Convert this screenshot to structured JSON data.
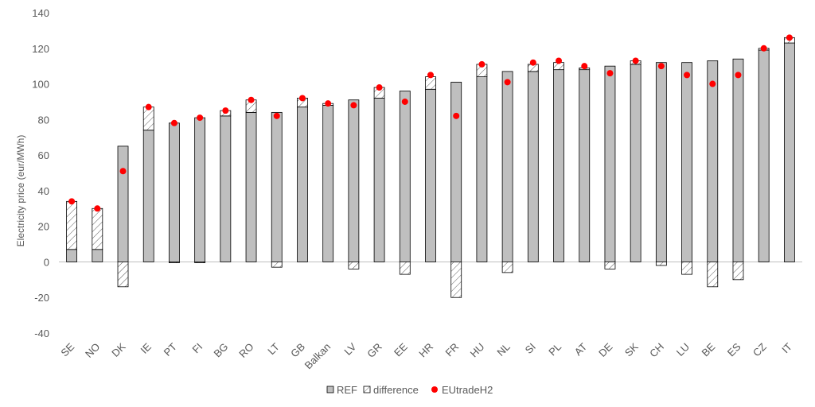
{
  "chart_data": {
    "type": "bar",
    "categories": [
      "SE",
      "NO",
      "DK",
      "IE",
      "PT",
      "FI",
      "BG",
      "RO",
      "LT",
      "GB",
      "Balkan",
      "LV",
      "GR",
      "EE",
      "HR",
      "FR",
      "HU",
      "NL",
      "SI",
      "PL",
      "AT",
      "DE",
      "SK",
      "CH",
      "LU",
      "BE",
      "ES",
      "CZ",
      "IT"
    ],
    "series": [
      {
        "name": "REF",
        "values": [
          7,
          7,
          65,
          74,
          78,
          81,
          82,
          84,
          84,
          87,
          88,
          91,
          92,
          96,
          97,
          101,
          104,
          107,
          107,
          108,
          108,
          110,
          111,
          112,
          112,
          113,
          114,
          119,
          123
        ]
      },
      {
        "name": "difference",
        "values": [
          27,
          23,
          -14,
          13,
          -0.5,
          -0.5,
          3,
          7,
          -3,
          5,
          1,
          -4,
          6,
          -7,
          7,
          -20,
          7,
          -6,
          4,
          4,
          1,
          -4,
          2,
          -2,
          -7,
          -14,
          -10,
          1,
          3
        ]
      },
      {
        "name": "EUtradeH2",
        "values": [
          34,
          30,
          51,
          87,
          78,
          81,
          85,
          91,
          82,
          92,
          89,
          88,
          98,
          90,
          105,
          82,
          111,
          101,
          112,
          113,
          110,
          106,
          113,
          110,
          105,
          100,
          105,
          120,
          126
        ]
      }
    ],
    "title": "",
    "xlabel": "",
    "ylabel": "Electricity price (eur/MWh)",
    "ylim": [
      -40,
      140
    ],
    "yticks": [
      -40,
      -20,
      0,
      20,
      40,
      60,
      80,
      100,
      120,
      140
    ],
    "grid": false,
    "legend": "bottom-center",
    "colors": {
      "ref": "#bfbfbf",
      "difference_hatch": "#595959",
      "eutrade": "#ff0000",
      "axis": "#bfbfbf",
      "text": "#595959"
    }
  }
}
